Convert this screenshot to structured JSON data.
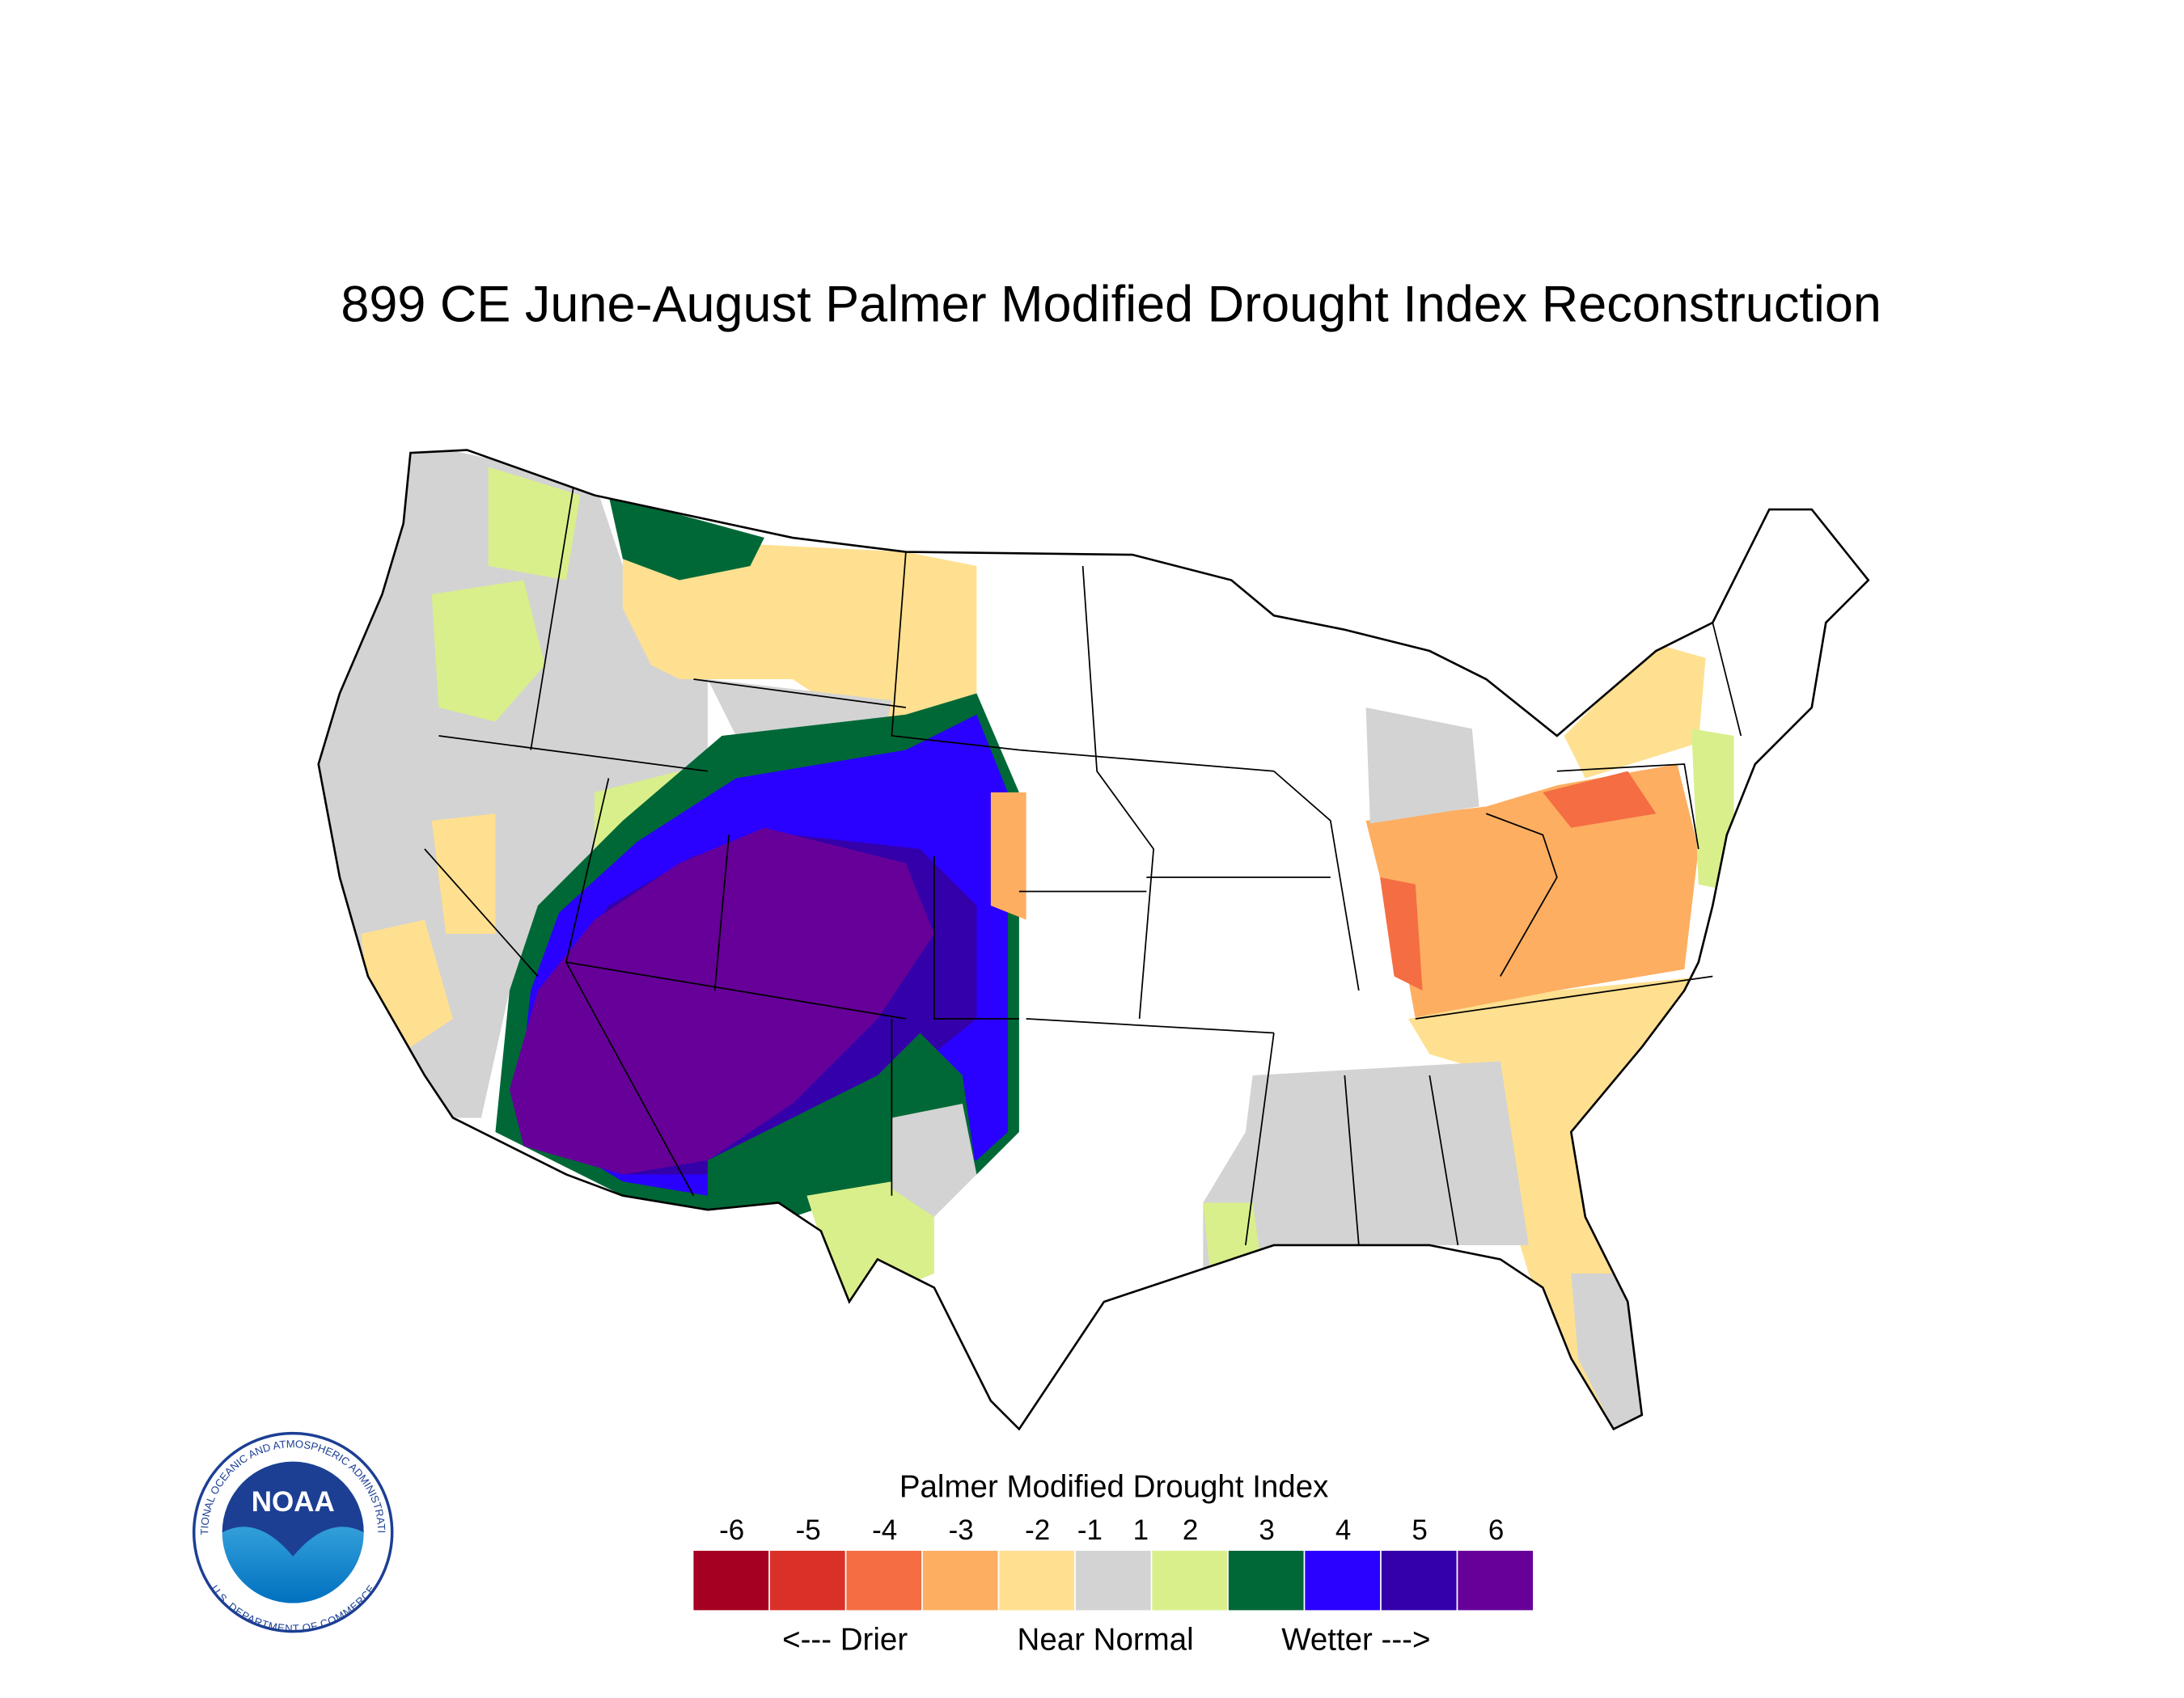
{
  "title": "899 CE  June-August  Palmer Modified Drought Index Reconstruction",
  "legend": {
    "title": "Palmer Modified Drought Index",
    "ticks": [
      -6,
      -5,
      -4,
      -3,
      -2,
      -1,
      1,
      2,
      3,
      4,
      5,
      6
    ],
    "colors": [
      "#a50021",
      "#d93127",
      "#f46d43",
      "#fdae61",
      "#fee090",
      "#d3d3d3",
      "#d9ef8b",
      "#006837",
      "#2a00ff",
      "#3300aa",
      "#660099"
    ],
    "labels": [
      "<--- Drier",
      "Near Normal",
      "Wetter --->"
    ]
  },
  "logo": {
    "name": "NOAA",
    "top_text": "NATIONAL OCEANIC AND ATMOSPHERIC ADMINISTRATION",
    "bottom_text": "U.S. DEPARTMENT OF COMMERCE"
  }
}
